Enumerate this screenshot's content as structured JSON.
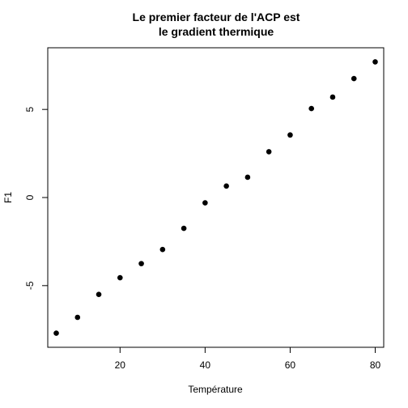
{
  "chart_data": {
    "type": "scatter",
    "title_lines": [
      "Le premier facteur de l'ACP est",
      "le gradient thermique"
    ],
    "xlabel": "Température",
    "ylabel": "F1",
    "xlim": [
      3.0,
      82.0
    ],
    "ylim": [
      -8.5,
      8.5
    ],
    "x_ticks": [
      20,
      40,
      60,
      80
    ],
    "y_ticks": [
      -5,
      0,
      5
    ],
    "grid": false,
    "point_color": "#000000",
    "points": [
      {
        "x": 5,
        "y": -7.7
      },
      {
        "x": 10,
        "y": -6.8
      },
      {
        "x": 15,
        "y": -5.5
      },
      {
        "x": 20,
        "y": -4.55
      },
      {
        "x": 25,
        "y": -3.75
      },
      {
        "x": 30,
        "y": -2.95
      },
      {
        "x": 35,
        "y": -1.75
      },
      {
        "x": 40,
        "y": -0.3
      },
      {
        "x": 45,
        "y": 0.65
      },
      {
        "x": 50,
        "y": 1.15
      },
      {
        "x": 55,
        "y": 2.6
      },
      {
        "x": 60,
        "y": 3.55
      },
      {
        "x": 65,
        "y": 5.05
      },
      {
        "x": 70,
        "y": 5.7
      },
      {
        "x": 75,
        "y": 6.75
      },
      {
        "x": 80,
        "y": 7.7
      }
    ]
  }
}
